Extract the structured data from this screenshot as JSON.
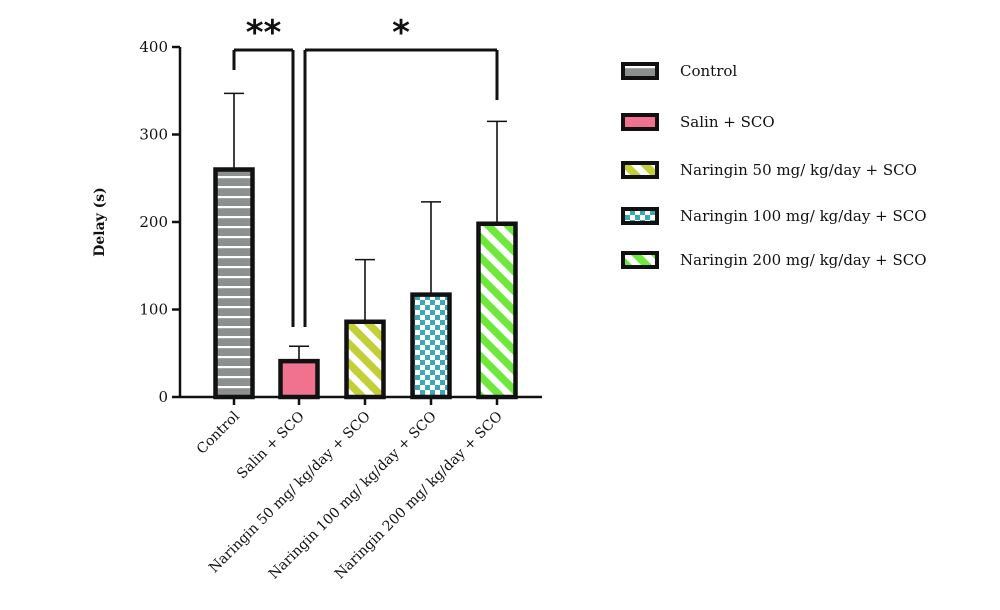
{
  "chart_data": {
    "type": "bar",
    "ylabel": "Delay (s)",
    "xlabel": "",
    "ylim": [
      0,
      400
    ],
    "yticks": [
      0,
      100,
      200,
      300,
      400
    ],
    "categories": [
      "Control",
      "Salin + SCO",
      "Naringin 50 mg/ kg/day + SCO",
      "Naringin 100 mg/ kg/day + SCO",
      "Naringin 200 mg/ kg/day + SCO"
    ],
    "values": [
      260,
      41,
      86,
      117,
      198
    ],
    "error_upper": [
      347,
      58,
      157,
      223,
      315
    ],
    "series_style": [
      {
        "name": "Control",
        "pattern": "horizontal-stripes",
        "color": "#8c908f"
      },
      {
        "name": "Salin + SCO",
        "pattern": "solid",
        "color": "#f0728f"
      },
      {
        "name": "Naringin 50 mg/ kg/day + SCO",
        "pattern": "diagonal-stripes",
        "color": "#c3cf36"
      },
      {
        "name": "Naringin 100 mg/ kg/day + SCO",
        "pattern": "checkerboard",
        "color": "#3aa9b5"
      },
      {
        "name": "Naringin 200 mg/ kg/day + SCO",
        "pattern": "diagonal-stripes",
        "color": "#6ee83a"
      }
    ],
    "significance": [
      {
        "from": 0,
        "to": 1,
        "label": "**"
      },
      {
        "from": 1,
        "to": 4,
        "label": "*"
      }
    ],
    "legend_position": "right"
  }
}
